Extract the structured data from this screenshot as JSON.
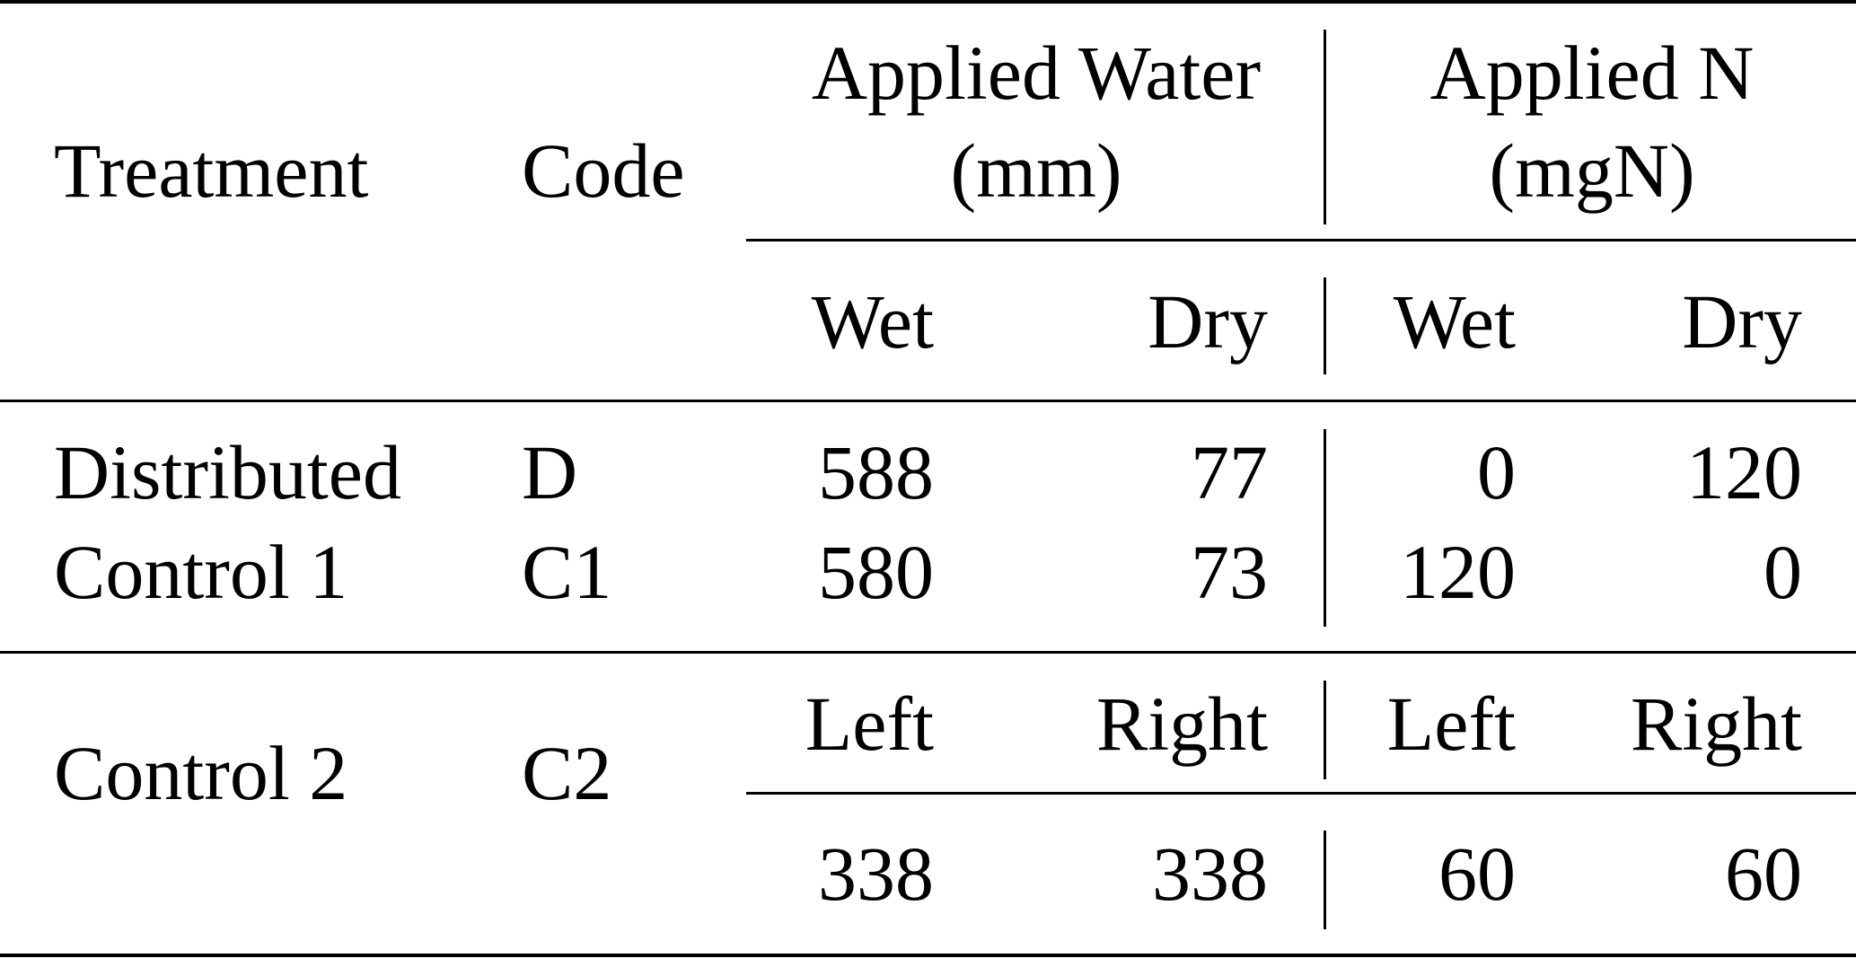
{
  "header": {
    "treatment": "Treatment",
    "code": "Code",
    "water_line1": "Applied Water",
    "water_line2": "(mm)",
    "n_line1": "Applied N",
    "n_line2": "(mgN)",
    "wet": "Wet",
    "dry": "Dry"
  },
  "rows": [
    {
      "treatment": "Distributed",
      "code": "D",
      "water_wet": "588",
      "water_dry": "77",
      "n_wet": "0",
      "n_dry": "120"
    },
    {
      "treatment": "Control 1",
      "code": "C1",
      "water_wet": "580",
      "water_dry": "73",
      "n_wet": "120",
      "n_dry": "0"
    }
  ],
  "control2": {
    "treatment": "Control 2",
    "code": "C2",
    "left": "Left",
    "right": "Right",
    "water_left": "338",
    "water_right": "338",
    "n_left": "60",
    "n_right": "60"
  }
}
